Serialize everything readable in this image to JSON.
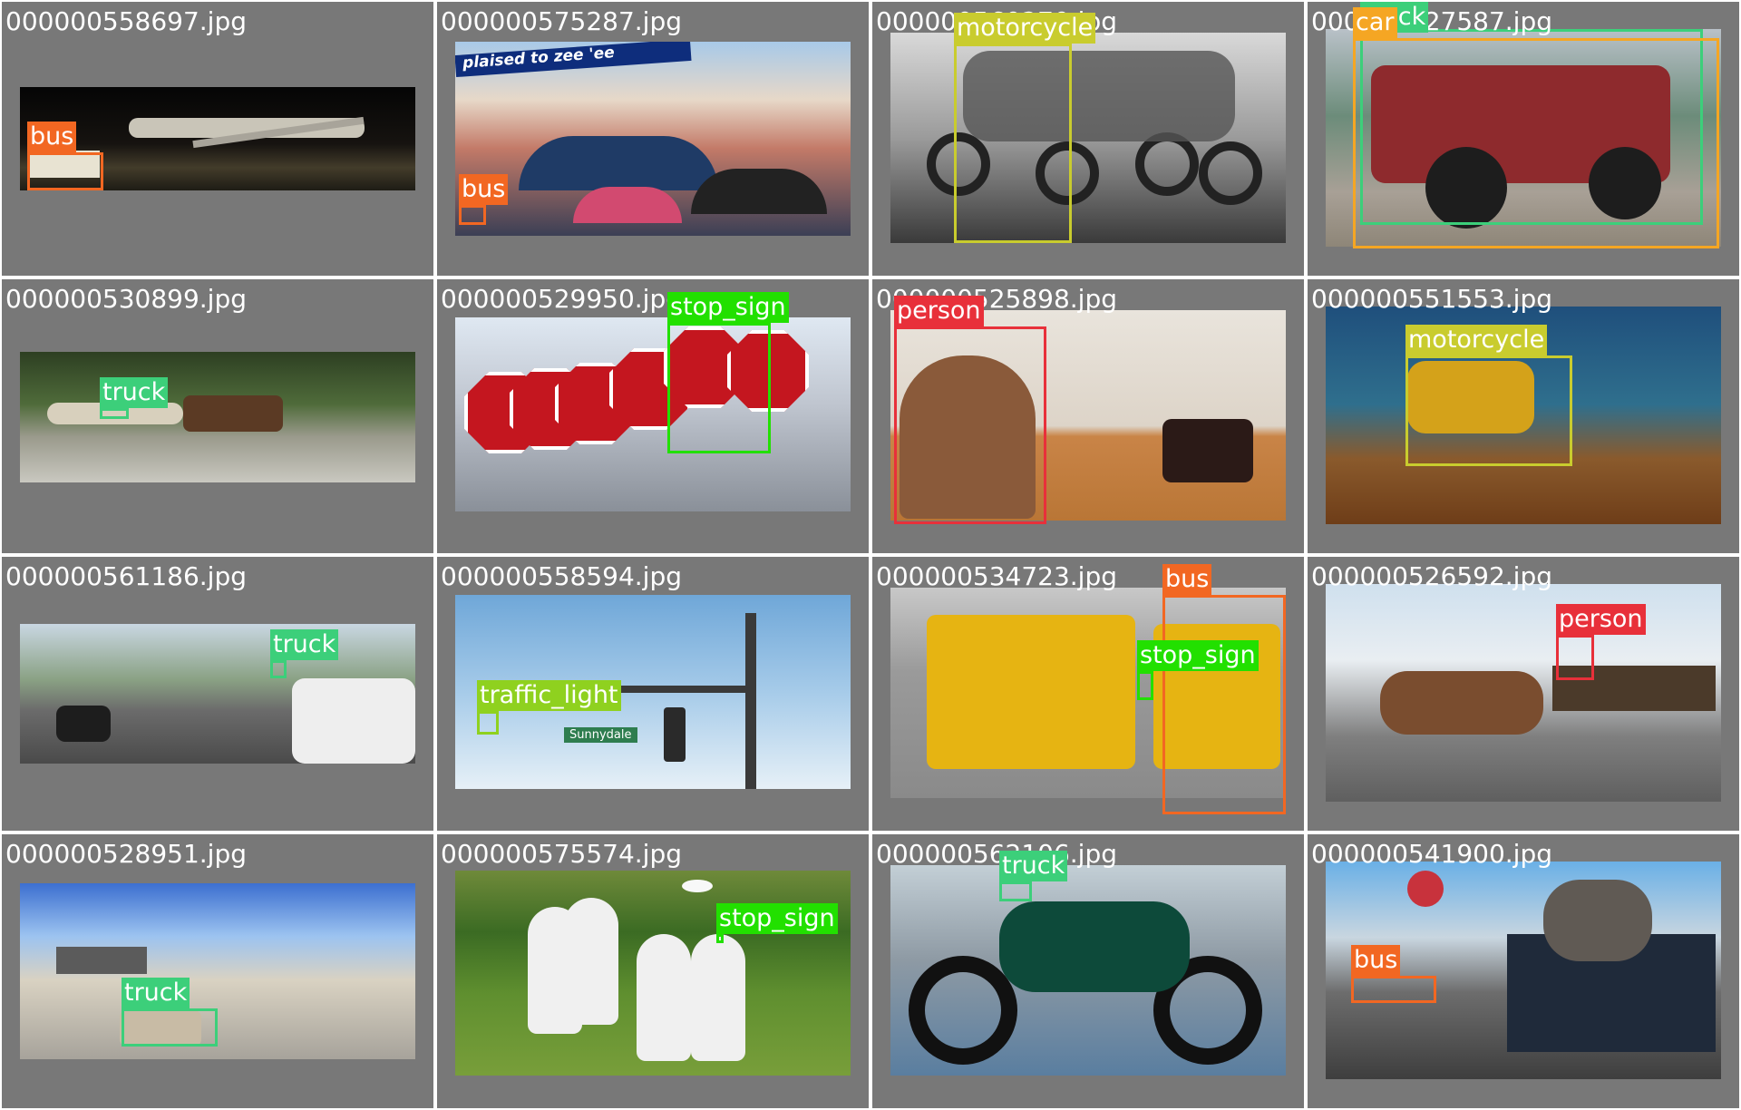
{
  "colors": {
    "bus": "#f26722",
    "truck": "#3ccf7a",
    "motorcycle": "#c9cc2e",
    "stop_sign": "#22e000",
    "person": "#e8303a",
    "traffic_light": "#8fd11f",
    "car": "#f5a623"
  },
  "cells": [
    {
      "filename": "000000558697.jpg",
      "scene": "airport-night",
      "labels": [
        {
          "text": "bus",
          "cls": "bus"
        }
      ]
    },
    {
      "filename": "000000575287.jpg",
      "scene": "street-umbrellas",
      "banner_text": "plaised to zee 'ee",
      "labels": [
        {
          "text": "bus",
          "cls": "bus"
        }
      ]
    },
    {
      "filename": "000000560270.jpg",
      "scene": "police-motorcycles",
      "labels": [
        {
          "text": "motorcycle",
          "cls": "motorcycle"
        }
      ]
    },
    {
      "filename": "000000527587.jpg",
      "scene": "red-jeep",
      "labels": [
        {
          "text": "truck",
          "cls": "truck"
        },
        {
          "text": "car",
          "cls": "car"
        }
      ]
    },
    {
      "filename": "000000530899.jpg",
      "scene": "forest-road-animals",
      "labels": [
        {
          "text": "truck",
          "cls": "truck"
        }
      ]
    },
    {
      "filename": "000000529950.jpg",
      "scene": "stop-signs",
      "labels": [
        {
          "text": "stop_sign",
          "cls": "stop_sign"
        }
      ]
    },
    {
      "filename": "000000525898.jpg",
      "scene": "child-cake",
      "labels": [
        {
          "text": "person",
          "cls": "person"
        }
      ]
    },
    {
      "filename": "000000551553.jpg",
      "scene": "dirt-bike",
      "labels": [
        {
          "text": "motorcycle",
          "cls": "motorcycle"
        }
      ]
    },
    {
      "filename": "000000561186.jpg",
      "scene": "street-scooters",
      "labels": [
        {
          "text": "truck",
          "cls": "truck"
        }
      ]
    },
    {
      "filename": "000000558594.jpg",
      "scene": "traffic-light-sky",
      "street_sign": "Sunnydale",
      "labels": [
        {
          "text": "traffic_light",
          "cls": "traffic_light"
        }
      ]
    },
    {
      "filename": "000000534723.jpg",
      "scene": "school-buses",
      "labels": [
        {
          "text": "bus",
          "cls": "bus"
        },
        {
          "text": "stop_sign",
          "cls": "stop_sign"
        }
      ]
    },
    {
      "filename": "000000526592.jpg",
      "scene": "mule-wagon",
      "labels": [
        {
          "text": "person",
          "cls": "person"
        }
      ]
    },
    {
      "filename": "000000528951.jpg",
      "scene": "parking-lot",
      "labels": [
        {
          "text": "truck",
          "cls": "truck"
        }
      ]
    },
    {
      "filename": "000000575574.jpg",
      "scene": "frisbee",
      "labels": [
        {
          "text": "stop_sign",
          "cls": "stop_sign"
        }
      ]
    },
    {
      "filename": "000000562106.jpg",
      "scene": "ducati",
      "labels": [
        {
          "text": "truck",
          "cls": "truck"
        }
      ]
    },
    {
      "filename": "000000541900.jpg",
      "scene": "street-truck",
      "labels": [
        {
          "text": "bus",
          "cls": "bus"
        }
      ]
    }
  ]
}
